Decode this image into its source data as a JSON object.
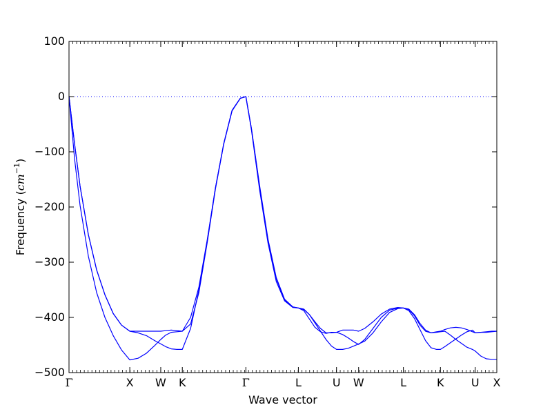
{
  "chart_data": {
    "type": "line",
    "title": "",
    "xlabel": "Wave vector",
    "ylabel": "Frequency ($cm^{-1}$)",
    "ylabel_parts": {
      "prefix": "Frequency (",
      "unit_base": "cm",
      "unit_exp": "−1",
      "suffix": ")"
    },
    "ylim": [
      -500,
      100
    ],
    "yticks": [
      {
        "value": 100,
        "label": "100"
      },
      {
        "value": 0,
        "label": "0"
      },
      {
        "value": -100,
        "label": "−100"
      },
      {
        "value": -200,
        "label": "−200"
      },
      {
        "value": -300,
        "label": "−300"
      },
      {
        "value": -400,
        "label": "−400"
      },
      {
        "value": -500,
        "label": "−500"
      }
    ],
    "xrange": [
      0,
      7.74
    ],
    "high_symmetry_points": [
      {
        "label": "Γ",
        "x": 0.0
      },
      {
        "label": "X",
        "x": 1.1
      },
      {
        "label": "W",
        "x": 1.66
      },
      {
        "label": "K",
        "x": 2.05
      },
      {
        "label": "Γ",
        "x": 3.2
      },
      {
        "label": "L",
        "x": 4.15
      },
      {
        "label": "U",
        "x": 4.84
      },
      {
        "label": "W",
        "x": 5.24
      },
      {
        "label": "L",
        "x": 6.05
      },
      {
        "label": "K",
        "x": 6.72
      },
      {
        "label": "U",
        "x": 7.35
      },
      {
        "label": "X",
        "x": 7.74
      }
    ],
    "reference_line": {
      "y": 0,
      "style": "dotted",
      "color": "#0000ff"
    },
    "line_color": "#0000ff",
    "grid": false,
    "series": [
      {
        "x": [
          0.0,
          0.1,
          0.2,
          0.35,
          0.5,
          0.65,
          0.8,
          0.95,
          1.1,
          1.25,
          1.4,
          1.55,
          1.66,
          1.75,
          1.85,
          1.95,
          2.05,
          2.2,
          2.35,
          2.5,
          2.65,
          2.8,
          2.95,
          3.1,
          3.2,
          3.3,
          3.45,
          3.6,
          3.75,
          3.9,
          4.05,
          4.15,
          4.25,
          4.35,
          4.45,
          4.55,
          4.65,
          4.75,
          4.84,
          4.95,
          5.05,
          5.15,
          5.24,
          5.35,
          5.5,
          5.65,
          5.8,
          5.95,
          6.05,
          6.15,
          6.25,
          6.35,
          6.45,
          6.55,
          6.65,
          6.72,
          6.8,
          6.9,
          7.0,
          7.1,
          7.2,
          7.3,
          7.35,
          7.45,
          7.55,
          7.65,
          7.74
        ],
        "y": [
          0,
          -112,
          -197,
          -289,
          -355,
          -400,
          -433,
          -459,
          -477,
          -474,
          -465,
          -451,
          -440,
          -432,
          -427,
          -426,
          -425,
          -400,
          -345,
          -260,
          -165,
          -85,
          -25,
          -3,
          0,
          -60,
          -170,
          -265,
          -335,
          -370,
          -382,
          -383,
          -385,
          -395,
          -410,
          -425,
          -440,
          -452,
          -458,
          -458,
          -456,
          -452,
          -448,
          -443,
          -428,
          -408,
          -391,
          -384,
          -383,
          -388,
          -402,
          -422,
          -442,
          -455,
          -458,
          -458,
          -453,
          -446,
          -439,
          -432,
          -426,
          -423,
          -428,
          -427,
          -427,
          -426,
          -425
        ]
      },
      {
        "x": [
          0.0,
          0.1,
          0.2,
          0.35,
          0.5,
          0.65,
          0.8,
          0.95,
          1.1,
          1.25,
          1.4,
          1.55,
          1.66,
          1.75,
          1.85,
          1.95,
          2.05,
          2.2,
          2.35,
          2.5,
          2.65,
          2.8,
          2.95,
          3.1,
          3.2,
          3.3,
          3.45,
          3.6,
          3.75,
          3.9,
          4.05,
          4.15,
          4.25,
          4.35,
          4.45,
          4.55,
          4.65,
          4.75,
          4.84,
          4.95,
          5.05,
          5.15,
          5.24,
          5.35,
          5.5,
          5.65,
          5.8,
          5.95,
          6.05,
          6.15,
          6.25,
          6.35,
          6.45,
          6.55,
          6.65,
          6.72,
          6.8,
          6.9,
          7.0,
          7.1,
          7.2,
          7.3,
          7.35,
          7.45,
          7.55,
          7.65,
          7.74
        ],
        "y": [
          0,
          -85,
          -162,
          -250,
          -314,
          -359,
          -393,
          -414,
          -425,
          -428,
          -433,
          -442,
          -448,
          -453,
          -457,
          -458,
          -458,
          -420,
          -350,
          -262,
          -165,
          -85,
          -25,
          -3,
          0,
          -58,
          -165,
          -260,
          -330,
          -368,
          -381,
          -383,
          -388,
          -403,
          -418,
          -426,
          -429,
          -427,
          -427,
          -431,
          -437,
          -444,
          -449,
          -440,
          -420,
          -400,
          -387,
          -383,
          -383,
          -386,
          -397,
          -414,
          -425,
          -428,
          -427,
          -426,
          -425,
          -432,
          -440,
          -447,
          -454,
          -458,
          -461,
          -470,
          -475,
          -476,
          -476
        ]
      },
      {
        "x": [
          0.0,
          0.1,
          0.2,
          0.35,
          0.5,
          0.65,
          0.8,
          0.95,
          1.1,
          1.25,
          1.4,
          1.55,
          1.66,
          1.75,
          1.85,
          1.95,
          2.05,
          2.2,
          2.35,
          2.5,
          2.65,
          2.8,
          2.95,
          3.1,
          3.2,
          3.3,
          3.45,
          3.6,
          3.75,
          3.9,
          4.05,
          4.15,
          4.25,
          4.35,
          4.45,
          4.55,
          4.65,
          4.75,
          4.84,
          4.95,
          5.05,
          5.15,
          5.24,
          5.35,
          5.5,
          5.65,
          5.8,
          5.95,
          6.05,
          6.15,
          6.25,
          6.35,
          6.45,
          6.55,
          6.65,
          6.72,
          6.8,
          6.9,
          7.0,
          7.1,
          7.2,
          7.3,
          7.35,
          7.45,
          7.55,
          7.65,
          7.74
        ],
        "y": [
          0,
          -85,
          -162,
          -250,
          -314,
          -359,
          -393,
          -414,
          -425,
          -425,
          -425,
          -425,
          -425,
          -424,
          -423,
          -424,
          -425,
          -412,
          -355,
          -265,
          -167,
          -86,
          -26,
          -3,
          0,
          -57,
          -162,
          -258,
          -328,
          -367,
          -381,
          -383,
          -386,
          -395,
          -408,
          -420,
          -428,
          -428,
          -427,
          -423,
          -423,
          -423,
          -425,
          -420,
          -408,
          -394,
          -385,
          -382,
          -383,
          -385,
          -395,
          -411,
          -423,
          -428,
          -426,
          -425,
          -422,
          -419,
          -418,
          -419,
          -422,
          -426,
          -428,
          -427,
          -426,
          -425,
          -425
        ]
      }
    ]
  }
}
